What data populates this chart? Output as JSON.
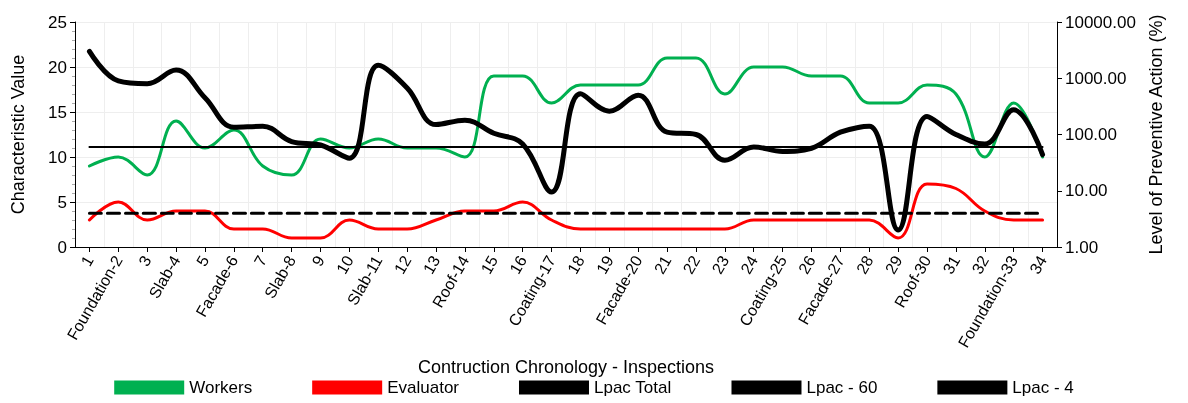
{
  "chart_data": {
    "type": "line",
    "xlabel": "Contruction Chronology - Inspections",
    "ylabel": "Characteristic Value",
    "y2label": "Level of Preventive Action (%)",
    "categories": [
      "1",
      "Foundation-2",
      "3",
      "Slab-4",
      "5",
      "Facade-6",
      "7",
      "Slab-8",
      "9",
      "10",
      "Slab-11",
      "12",
      "13",
      "Roof-14",
      "15",
      "16",
      "Coating-17",
      "18",
      "19",
      "Facade-20",
      "21",
      "22",
      "23",
      "24",
      "Coating-25",
      "26",
      "Facade-27",
      "28",
      "29",
      "Roof-30",
      "31",
      "32",
      "Foundation-33",
      "34"
    ],
    "series": [
      {
        "name": "Workers",
        "color": "#00b050",
        "line_style": "solid",
        "values": [
          9,
          10,
          8,
          14,
          11,
          13,
          9,
          8,
          12,
          11,
          12,
          11,
          11,
          10,
          19,
          19,
          16,
          18,
          18,
          18,
          21,
          21,
          17,
          20,
          20,
          19,
          19,
          16,
          16,
          18,
          17,
          10,
          16,
          10
        ]
      },
      {
        "name": "Evaluator",
        "color": "#ff0000",
        "line_style": "solid",
        "values": [
          3,
          5,
          3,
          4,
          4,
          2,
          2,
          1,
          1,
          3,
          2,
          2,
          3,
          4,
          4,
          5,
          3,
          2,
          2,
          2,
          2,
          2,
          2,
          3,
          3,
          3,
          3,
          3,
          1,
          7,
          6.5,
          4,
          3,
          3
        ]
      },
      {
        "name": "Lpac Total",
        "color": "#000000",
        "axis": "y2",
        "line_style": "solid",
        "values": [
          3000,
          900,
          800,
          1400,
          450,
          135,
          140,
          75,
          65,
          38,
          1700,
          670,
          150,
          180,
          105,
          68,
          9.5,
          530,
          260,
          500,
          110,
          100,
          35,
          60,
          50,
          57,
          110,
          140,
          2,
          210,
          100,
          68,
          275,
          44
        ]
      },
      {
        "name": "Lpac - 60",
        "color": "#000000",
        "axis": "y2",
        "line_style": "solid",
        "values": [
          60,
          60,
          60,
          60,
          60,
          60,
          60,
          60,
          60,
          60,
          60,
          60,
          60,
          60,
          60,
          60,
          60,
          60,
          60,
          60,
          60,
          60,
          60,
          60,
          60,
          60,
          60,
          60,
          60,
          60,
          60,
          60,
          60,
          60
        ]
      },
      {
        "name": "Lpac - 4",
        "color": "#000000",
        "axis": "y2",
        "line_style": "dashed",
        "values": [
          4,
          4,
          4,
          4,
          4,
          4,
          4,
          4,
          4,
          4,
          4,
          4,
          4,
          4,
          4,
          4,
          4,
          4,
          4,
          4,
          4,
          4,
          4,
          4,
          4,
          4,
          4,
          4,
          4,
          4,
          4,
          4,
          4,
          4
        ]
      }
    ],
    "ylim": [
      0,
      25
    ],
    "yticks": [
      0,
      5,
      10,
      15,
      20,
      25
    ],
    "y2lim": [
      1,
      10000
    ],
    "y2ticks": [
      {
        "value": 1,
        "label": "1.00"
      },
      {
        "value": 10,
        "label": "10.00"
      },
      {
        "value": 100,
        "label": "100.00"
      },
      {
        "value": 1000,
        "label": "1000.00"
      },
      {
        "value": 10000,
        "label": "10000.00"
      }
    ],
    "log": "y2",
    "grid": true,
    "legend": "bottom",
    "marker": "none"
  }
}
